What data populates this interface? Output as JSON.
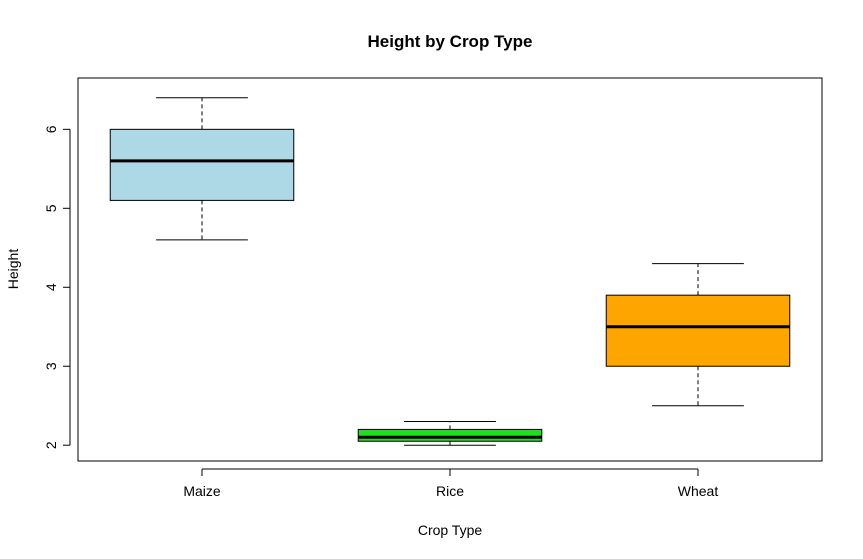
{
  "chart_data": {
    "type": "boxplot",
    "title": "Height by Crop Type",
    "xlabel": "Crop Type",
    "ylabel": "Height",
    "ylim": [
      1.8,
      6.65
    ],
    "yticks": [
      2,
      3,
      4,
      5,
      6
    ],
    "grid": false,
    "categories": [
      "Maize",
      "Rice",
      "Wheat"
    ],
    "boxes": [
      {
        "name": "Maize",
        "min": 4.6,
        "q1": 5.1,
        "median": 5.6,
        "q3": 6.0,
        "max": 6.4,
        "color": "#add8e6"
      },
      {
        "name": "Rice",
        "min": 2.0,
        "q1": 2.05,
        "median": 2.1,
        "q3": 2.2,
        "max": 2.3,
        "color": "#22dd22"
      },
      {
        "name": "Wheat",
        "min": 2.5,
        "q1": 3.0,
        "median": 3.5,
        "q3": 3.9,
        "max": 4.3,
        "color": "#ffa500"
      }
    ]
  }
}
